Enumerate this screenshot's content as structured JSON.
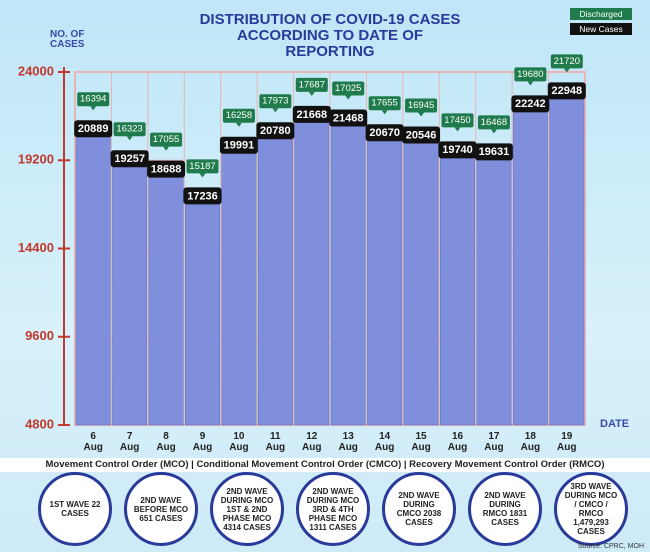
{
  "chart_data": {
    "type": "bar",
    "title": "DISTRIBUTION OF COVID-19 CASES ACCORDING TO DATE OF REPORTING",
    "y_label": "NO. OF CASES",
    "x_label": "DATE",
    "categories": [
      "6 Aug",
      "7 Aug",
      "8 Aug",
      "9 Aug",
      "10 Aug",
      "11 Aug",
      "12 Aug",
      "13 Aug",
      "14 Aug",
      "15 Aug",
      "16 Aug",
      "17 Aug",
      "18 Aug",
      "19 Aug"
    ],
    "series": [
      {
        "name": "New Cases",
        "color": "#7f8fdc",
        "values": [
          20889,
          19257,
          18688,
          17236,
          19991,
          20780,
          21668,
          21468,
          20670,
          20546,
          19740,
          19631,
          22242,
          22948
        ]
      },
      {
        "name": "Discharged",
        "color": "#1f7a4c",
        "values": [
          16394,
          16323,
          17055,
          15187,
          16258,
          17973,
          17687,
          17025,
          17655,
          16945,
          17450,
          16468,
          19680,
          21720
        ]
      }
    ],
    "ylim": [
      4800,
      24000
    ],
    "yticks": [
      4800,
      9600,
      14400,
      19200,
      24000
    ],
    "grid": true
  },
  "note": "Movement Control Order (MCO) | Conditional Movement Control Order (CMCO) | Recovery Movement Control Order (RMCO)",
  "waves": [
    "1ST WAVE 22 CASES",
    "2ND WAVE BEFORE MCO 651 CASES",
    "2ND WAVE DURING MCO 1ST & 2ND PHASE MCO 4314 CASES",
    "2ND WAVE DURING MCO 3RD & 4TH PHASE MCO 1311 CASES",
    "2ND WAVE DURING CMCO 2038 CASES",
    "2ND WAVE DURING RMCO 1831 CASES",
    "3RD WAVE DURING MCO / CMCO / RMCO 1,479,293 CASES"
  ],
  "source": "Source: CPRC, MOH"
}
